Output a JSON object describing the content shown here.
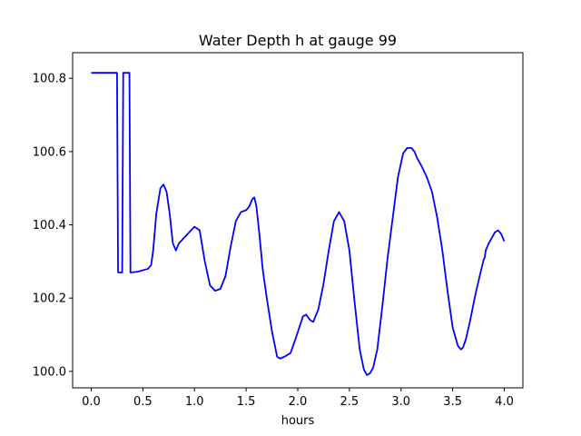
{
  "chart_data": {
    "type": "line",
    "title": "Water Depth h at gauge 99",
    "xlabel": "hours",
    "ylabel": "",
    "xlim": [
      -0.18,
      4.18
    ],
    "ylim": [
      99.955,
      100.87
    ],
    "xticks": [
      0.0,
      0.5,
      1.0,
      1.5,
      2.0,
      2.5,
      3.0,
      3.5,
      4.0
    ],
    "xtick_labels": [
      "0.0",
      "0.5",
      "1.0",
      "1.5",
      "2.0",
      "2.5",
      "3.0",
      "3.5",
      "4.0"
    ],
    "yticks": [
      100.0,
      100.2,
      100.4,
      100.6,
      100.8
    ],
    "ytick_labels": [
      "100.0",
      "100.2",
      "100.4",
      "100.6",
      "100.8"
    ],
    "grid": false,
    "series": [
      {
        "color": "#0000ff",
        "x": [
          0.0,
          0.25,
          0.26,
          0.3,
          0.31,
          0.37,
          0.38,
          0.45,
          0.55,
          0.58,
          0.6,
          0.63,
          0.67,
          0.7,
          0.73,
          0.76,
          0.79,
          0.82,
          0.85,
          0.9,
          0.95,
          1.0,
          1.05,
          1.1,
          1.15,
          1.2,
          1.25,
          1.3,
          1.35,
          1.4,
          1.45,
          1.5,
          1.53,
          1.56,
          1.58,
          1.6,
          1.63,
          1.66,
          1.7,
          1.75,
          1.8,
          1.83,
          1.87,
          1.93,
          1.98,
          2.05,
          2.08,
          2.12,
          2.15,
          2.2,
          2.25,
          2.3,
          2.35,
          2.4,
          2.45,
          2.5,
          2.55,
          2.6,
          2.64,
          2.67,
          2.7,
          2.73,
          2.77,
          2.82,
          2.87,
          2.92,
          2.97,
          3.02,
          3.06,
          3.1,
          3.13,
          3.16,
          3.2,
          3.25,
          3.3,
          3.35,
          3.4,
          3.45,
          3.5,
          3.55,
          3.58,
          3.6,
          3.63,
          3.67,
          3.72,
          3.77,
          3.8,
          3.81,
          3.82,
          3.85,
          3.88,
          3.91,
          3.94,
          3.97,
          4.0
        ],
        "y": [
          100.815,
          100.815,
          100.27,
          100.27,
          100.815,
          100.815,
          100.27,
          100.272,
          100.28,
          100.29,
          100.33,
          100.43,
          100.5,
          100.51,
          100.49,
          100.43,
          100.35,
          100.33,
          100.35,
          100.365,
          100.38,
          100.395,
          100.385,
          100.3,
          100.235,
          100.22,
          100.225,
          100.26,
          100.34,
          100.41,
          100.435,
          100.44,
          100.45,
          100.47,
          100.475,
          100.45,
          100.37,
          100.28,
          100.2,
          100.11,
          100.04,
          100.035,
          100.04,
          100.05,
          100.09,
          100.15,
          100.155,
          100.14,
          100.135,
          100.17,
          100.24,
          100.33,
          100.41,
          100.435,
          100.41,
          100.33,
          100.19,
          100.06,
          100.005,
          99.99,
          99.995,
          100.01,
          100.06,
          100.18,
          100.31,
          100.42,
          100.53,
          100.595,
          100.61,
          100.61,
          100.6,
          100.58,
          100.56,
          100.53,
          100.49,
          100.42,
          100.33,
          100.22,
          100.12,
          100.07,
          100.06,
          100.065,
          100.09,
          100.14,
          100.21,
          100.27,
          100.305,
          100.31,
          100.33,
          100.35,
          100.365,
          100.38,
          100.385,
          100.375,
          100.355
        ]
      }
    ]
  }
}
